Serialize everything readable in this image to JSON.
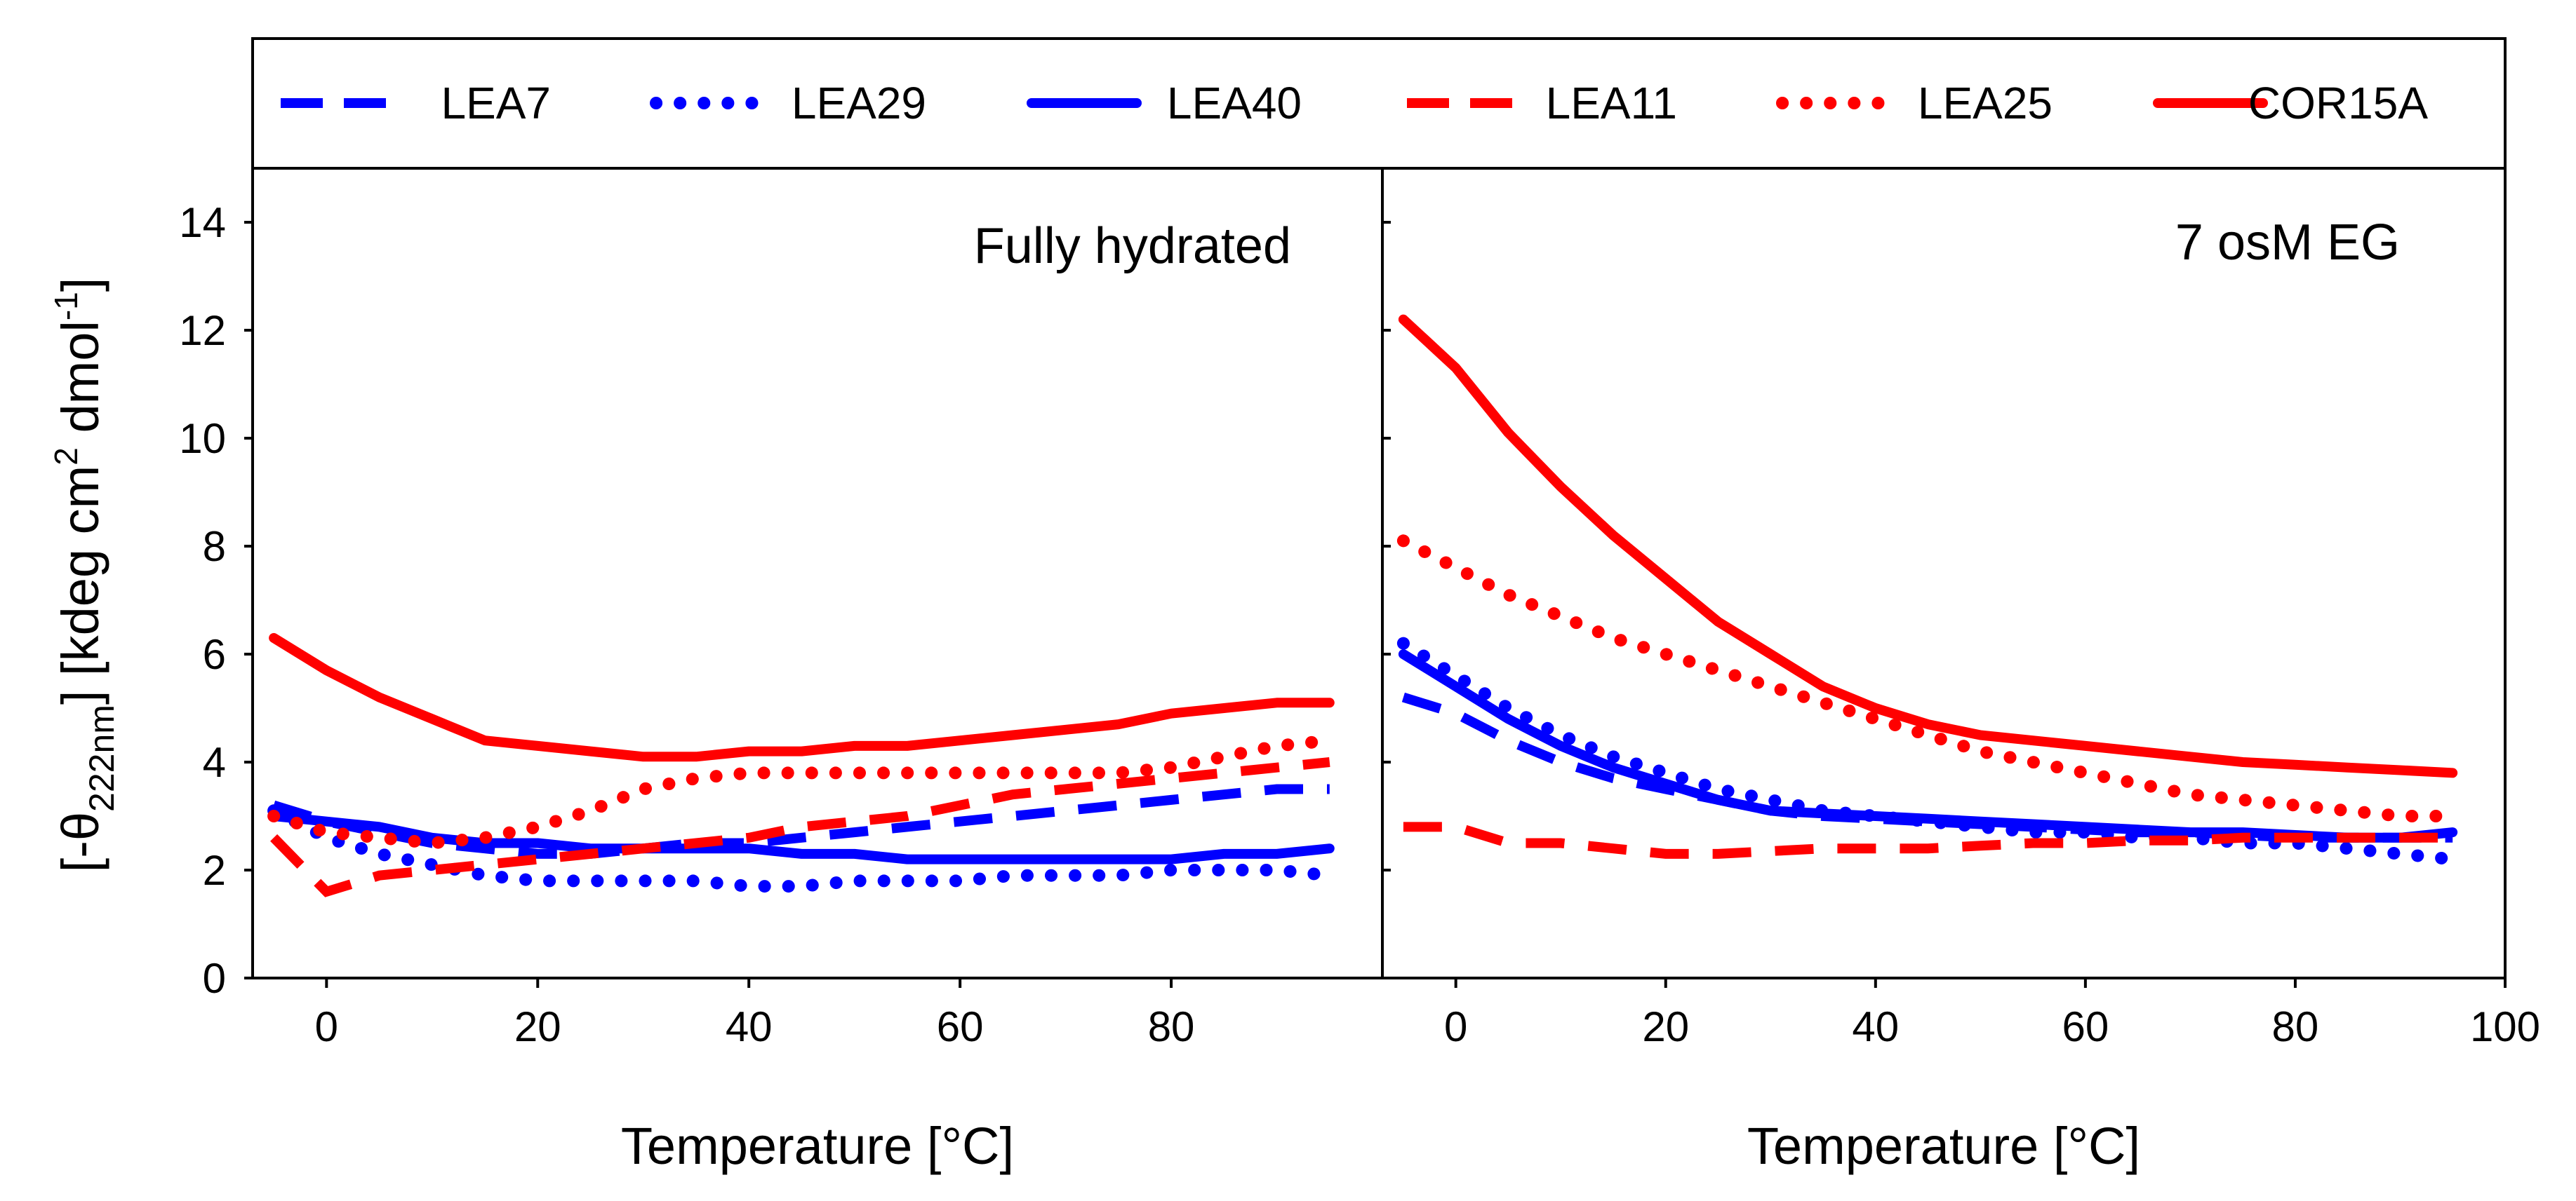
{
  "chart_data": {
    "type": "line",
    "ylabel": {
      "open": "[-θ",
      "sub": "222nm",
      "mid": "] [kdeg cm",
      "sup1": "2",
      "mid2": " dmol",
      "sup2": "-1",
      "close": "]"
    },
    "ylim": [
      0,
      15
    ],
    "yticks": [
      0,
      2,
      4,
      6,
      8,
      10,
      12,
      14
    ],
    "legend_position": "top",
    "series_styles": [
      {
        "name": "LEA7",
        "color": "#0000ff",
        "style": "dashed"
      },
      {
        "name": "LEA29",
        "color": "#0000ff",
        "style": "dotted"
      },
      {
        "name": "LEA40",
        "color": "#0000ff",
        "style": "solid"
      },
      {
        "name": "LEA11",
        "color": "#ff0000",
        "style": "dashed"
      },
      {
        "name": "LEA25",
        "color": "#ff0000",
        "style": "dotted"
      },
      {
        "name": "COR15A",
        "color": "#ff0000",
        "style": "solid"
      }
    ],
    "panels": [
      {
        "title": "Fully hydrated",
        "xlabel": "Temperature [°C]",
        "xlim": [
          -7,
          100
        ],
        "xticks": [
          0,
          20,
          40,
          60,
          80
        ],
        "x": [
          -5,
          0,
          5,
          10,
          15,
          20,
          25,
          30,
          35,
          40,
          45,
          50,
          55,
          60,
          65,
          70,
          75,
          80,
          85,
          90,
          95
        ],
        "series": [
          {
            "name": "LEA7",
            "values": [
              3.2,
              2.9,
              2.7,
              2.5,
              2.4,
              2.3,
              2.3,
              2.4,
              2.5,
              2.5,
              2.6,
              2.7,
              2.8,
              2.9,
              3.0,
              3.1,
              3.2,
              3.3,
              3.4,
              3.5,
              3.5
            ]
          },
          {
            "name": "LEA29",
            "values": [
              3.1,
              2.6,
              2.3,
              2.1,
              1.9,
              1.8,
              1.8,
              1.8,
              1.8,
              1.7,
              1.7,
              1.8,
              1.8,
              1.8,
              1.9,
              1.9,
              1.9,
              2.0,
              2.0,
              2.0,
              1.9
            ]
          },
          {
            "name": "LEA40",
            "values": [
              3.0,
              2.9,
              2.8,
              2.6,
              2.5,
              2.5,
              2.4,
              2.4,
              2.4,
              2.4,
              2.3,
              2.3,
              2.2,
              2.2,
              2.2,
              2.2,
              2.2,
              2.2,
              2.3,
              2.3,
              2.4
            ]
          },
          {
            "name": "LEA11",
            "values": [
              2.6,
              1.6,
              1.9,
              2.0,
              2.1,
              2.2,
              2.3,
              2.4,
              2.5,
              2.6,
              2.8,
              2.9,
              3.0,
              3.2,
              3.4,
              3.5,
              3.6,
              3.7,
              3.8,
              3.9,
              4.0
            ]
          },
          {
            "name": "LEA25",
            "values": [
              3.0,
              2.7,
              2.6,
              2.5,
              2.6,
              2.8,
              3.1,
              3.5,
              3.7,
              3.8,
              3.8,
              3.8,
              3.8,
              3.8,
              3.8,
              3.8,
              3.8,
              3.9,
              4.1,
              4.3,
              4.4
            ]
          },
          {
            "name": "COR15A",
            "values": [
              6.3,
              5.7,
              5.2,
              4.8,
              4.4,
              4.3,
              4.2,
              4.1,
              4.1,
              4.2,
              4.2,
              4.3,
              4.3,
              4.4,
              4.5,
              4.6,
              4.7,
              4.9,
              5.0,
              5.1,
              5.1
            ]
          }
        ]
      },
      {
        "title": "7 osM EG",
        "xlabel": "Temperature [°C]",
        "xlim": [
          -7,
          100
        ],
        "xticks": [
          0,
          20,
          40,
          60,
          80,
          100
        ],
        "x": [
          -5,
          0,
          5,
          10,
          15,
          20,
          25,
          30,
          35,
          40,
          45,
          50,
          55,
          60,
          65,
          70,
          75,
          80,
          85,
          90,
          95
        ],
        "series": [
          {
            "name": "LEA7",
            "values": [
              5.2,
              4.9,
              4.4,
              4.0,
              3.7,
              3.5,
              3.3,
              3.1,
              3.0,
              2.95,
              2.9,
              2.85,
              2.8,
              2.75,
              2.7,
              2.7,
              2.65,
              2.6,
              2.6,
              2.6,
              2.6
            ]
          },
          {
            "name": "LEA29",
            "values": [
              6.2,
              5.6,
              5.0,
              4.5,
              4.1,
              3.8,
              3.5,
              3.3,
              3.1,
              3.0,
              2.9,
              2.8,
              2.7,
              2.7,
              2.6,
              2.6,
              2.5,
              2.5,
              2.4,
              2.3,
              2.2
            ]
          },
          {
            "name": "LEA40",
            "values": [
              6.0,
              5.4,
              4.8,
              4.3,
              3.9,
              3.6,
              3.3,
              3.1,
              3.05,
              3.0,
              2.95,
              2.9,
              2.85,
              2.8,
              2.75,
              2.7,
              2.7,
              2.65,
              2.6,
              2.6,
              2.7
            ]
          },
          {
            "name": "LEA11",
            "values": [
              2.8,
              2.8,
              2.5,
              2.5,
              2.4,
              2.3,
              2.3,
              2.35,
              2.4,
              2.4,
              2.4,
              2.45,
              2.5,
              2.5,
              2.55,
              2.55,
              2.6,
              2.6,
              2.6,
              2.6,
              2.6
            ]
          },
          {
            "name": "LEA25",
            "values": [
              8.1,
              7.6,
              7.1,
              6.7,
              6.3,
              6.0,
              5.7,
              5.4,
              5.1,
              4.8,
              4.5,
              4.2,
              4.0,
              3.8,
              3.6,
              3.4,
              3.3,
              3.2,
              3.1,
              3.0,
              3.0
            ]
          },
          {
            "name": "COR15A",
            "values": [
              12.2,
              11.3,
              10.1,
              9.1,
              8.2,
              7.4,
              6.6,
              6.0,
              5.4,
              5.0,
              4.7,
              4.5,
              4.4,
              4.3,
              4.2,
              4.1,
              4.0,
              3.95,
              3.9,
              3.85,
              3.8
            ]
          }
        ]
      }
    ]
  }
}
